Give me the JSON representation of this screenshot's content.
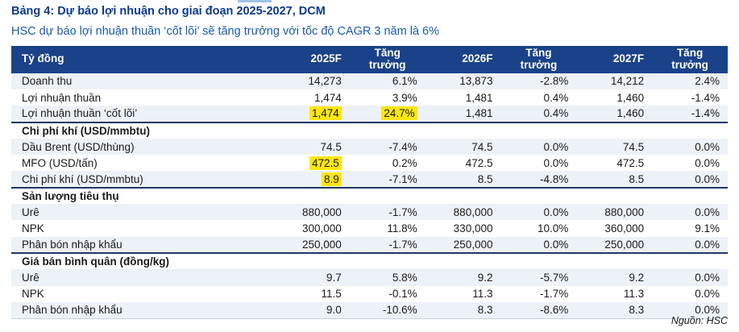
{
  "page": {
    "title": "Bảng 4: Dự báo lợi nhuận cho giai đoạn 2025-2027, DCM",
    "subtitle": "HSC dự báo lợi nhuận thuần ‘cốt lõi’ sẽ tăng trưởng với tốc độ CAGR 3 năm là 6%",
    "source": "Nguồn: HSC"
  },
  "colors": {
    "title": "#0B3A8C",
    "subtitle": "#185BB0",
    "header_bg": "#1A4289",
    "row_shaded": "#EDF1F8",
    "highlight": "#FFE60E",
    "section_border": "#1F3864",
    "accent_line": "#9DC3E6",
    "text": "#1A1A1A"
  },
  "table": {
    "columns": [
      "Tỷ đồng",
      "2025F",
      "Tăng trưởng",
      "2026F",
      "Tăng trưởng",
      "2027F",
      "Tăng trưởng"
    ],
    "rows": [
      {
        "type": "data",
        "label": "Doanh thu",
        "values": [
          "14,273",
          "6.1%",
          "13,873",
          "-2.8%",
          "14,212",
          "2.4%"
        ],
        "highlight": []
      },
      {
        "type": "data",
        "label": "Lợi nhuận thuần",
        "values": [
          "1,474",
          "3.9%",
          "1,481",
          "0.4%",
          "1,460",
          "-1.4%"
        ],
        "highlight": []
      },
      {
        "type": "data",
        "label": "Lợi nhuận thuần ‘cốt lõi’",
        "values": [
          "1,474",
          "24.7%",
          "1,481",
          "0.4%",
          "1,460",
          "-1.4%"
        ],
        "highlight": [
          0,
          1
        ]
      },
      {
        "type": "section",
        "label": "Chi phí khí (USD/mmbtu)"
      },
      {
        "type": "data",
        "label": "Dầu Brent (USD/thùng)",
        "values": [
          "74.5",
          "-7.4%",
          "74.5",
          "0.0%",
          "74.5",
          "0.0%"
        ],
        "highlight": []
      },
      {
        "type": "data",
        "label": "MFO (USD/tấn)",
        "values": [
          "472.5",
          "0.2%",
          "472.5",
          "0.0%",
          "472.5",
          "0.0%"
        ],
        "highlight": [
          0
        ]
      },
      {
        "type": "data",
        "label": "Chi phí khí (USD/mmbtu)",
        "values": [
          "8.9",
          "-7.1%",
          "8.5",
          "-4.8%",
          "8.5",
          "0.0%"
        ],
        "highlight": [
          0
        ]
      },
      {
        "type": "section",
        "label": "Sản lượng tiêu thụ"
      },
      {
        "type": "data",
        "label": "Urê",
        "values": [
          "880,000",
          "-1.7%",
          "880,000",
          "0.0%",
          "880,000",
          "0.0%"
        ],
        "highlight": []
      },
      {
        "type": "data",
        "label": "NPK",
        "values": [
          "300,000",
          "11.8%",
          "330,000",
          "10.0%",
          "360,000",
          "9.1%"
        ],
        "highlight": []
      },
      {
        "type": "data",
        "label": "Phân bón nhập khẩu",
        "values": [
          "250,000",
          "-1.7%",
          "250,000",
          "0.0%",
          "250,000",
          "0.0%"
        ],
        "highlight": []
      },
      {
        "type": "section",
        "label": "Giá bán bình quân (đồng/kg)"
      },
      {
        "type": "data",
        "label": "Urê",
        "values": [
          "9.7",
          "5.8%",
          "9.2",
          "-5.7%",
          "9.2",
          "0.0%"
        ],
        "highlight": []
      },
      {
        "type": "data",
        "label": "NPK",
        "values": [
          "11.5",
          "-0.1%",
          "11.3",
          "-1.7%",
          "11.3",
          "0.0%"
        ],
        "highlight": []
      },
      {
        "type": "data",
        "label": "Phân bón nhập khẩu",
        "values": [
          "9.0",
          "-10.6%",
          "8.3",
          "-8.6%",
          "8.3",
          "0.0%"
        ],
        "highlight": []
      }
    ]
  }
}
